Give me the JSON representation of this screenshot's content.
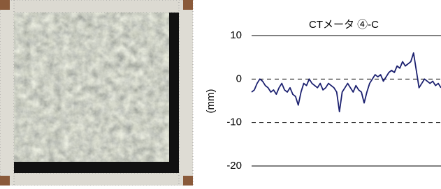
{
  "chart_data": {
    "type": "line",
    "title": "CTメータ ④-C",
    "y_label": "(mm)",
    "series": [
      {
        "color": "#1c2170",
        "values": [
          -3,
          -2.5,
          -1,
          0,
          -0.5,
          -1.5,
          -2,
          -3,
          -2.5,
          -3.5,
          -2,
          -1,
          -2.5,
          -3,
          -2,
          -3.5,
          -4,
          -6,
          -3,
          -1,
          -1.5,
          0,
          -1,
          -1.5,
          -2,
          -1,
          -2.5,
          -2,
          -1,
          -1.5,
          -2,
          -3,
          -7.5,
          -3,
          -2,
          -1,
          -2,
          -3,
          -1.5,
          -2.5,
          -3,
          -5.5,
          -3,
          -1,
          0,
          1,
          0.5,
          1,
          -0.5,
          0.5,
          1.5,
          2,
          1.5,
          3,
          2.5,
          4,
          3,
          3.5,
          4,
          6,
          2,
          -2,
          -1,
          0,
          -0.5,
          -1,
          -0.5,
          -1.5,
          -1,
          -2
        ]
      }
    ],
    "ylim": [
      -20,
      10
    ],
    "yticks": [
      -20,
      -10,
      0,
      10
    ],
    "grid": true
  }
}
